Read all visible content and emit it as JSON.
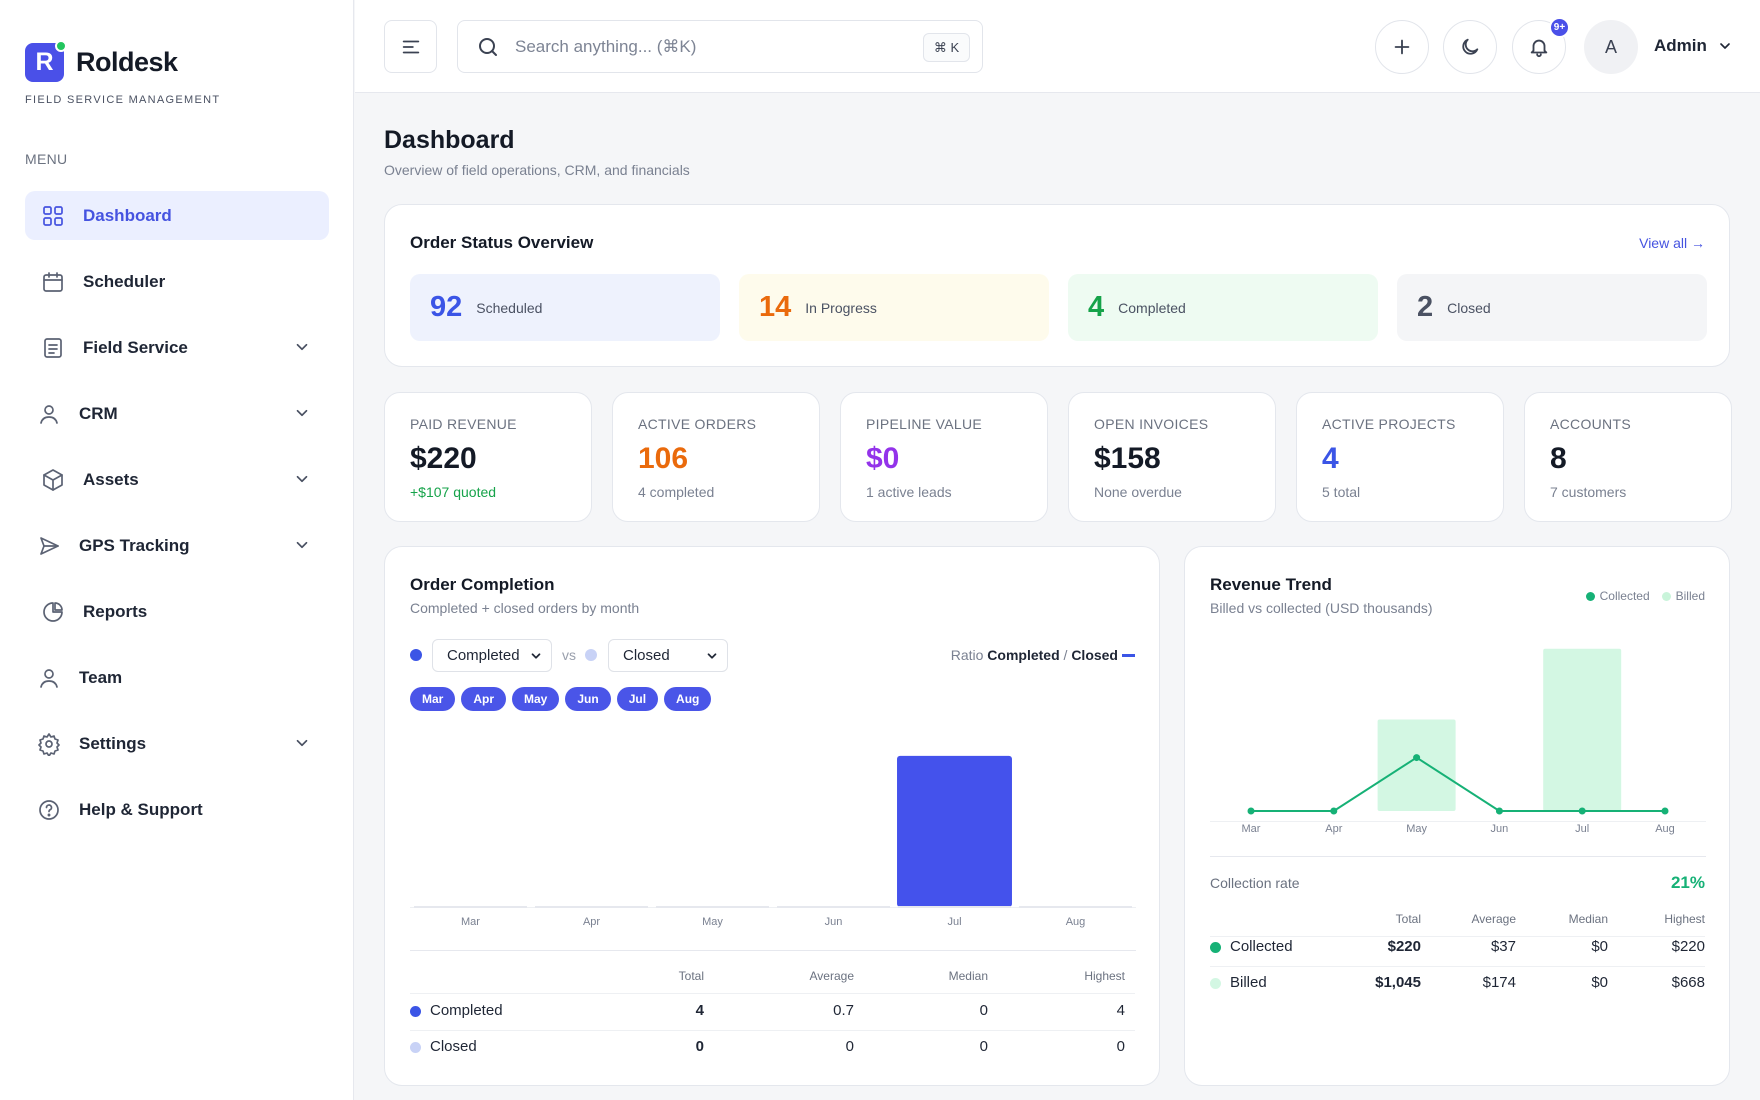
{
  "brand": {
    "name": "Roldesk",
    "mark": "R",
    "subtitle": "FIELD SERVICE MANAGEMENT"
  },
  "menu_label": "MENU",
  "nav": [
    {
      "label": "Dashboard",
      "icon": "grid-icon",
      "active": true,
      "expandable": false
    },
    {
      "label": "Scheduler",
      "icon": "calendar-icon",
      "active": false,
      "expandable": false
    },
    {
      "label": "Field Service",
      "icon": "document-icon",
      "active": false,
      "expandable": true
    },
    {
      "label": "CRM",
      "icon": "user-icon",
      "active": false,
      "expandable": true
    },
    {
      "label": "Assets",
      "icon": "box-icon",
      "active": false,
      "expandable": true
    },
    {
      "label": "GPS Tracking",
      "icon": "send-icon",
      "active": false,
      "expandable": true
    },
    {
      "label": "Reports",
      "icon": "pie-chart-icon",
      "active": false,
      "expandable": false
    },
    {
      "label": "Team",
      "icon": "user-icon",
      "active": false,
      "expandable": false
    },
    {
      "label": "Settings",
      "icon": "gear-icon",
      "active": false,
      "expandable": true
    },
    {
      "label": "Help & Support",
      "icon": "help-circle-icon",
      "active": false,
      "expandable": false
    }
  ],
  "topbar": {
    "search_placeholder": "Search anything... (⌘K)",
    "shortcut": "⌘ K",
    "notif_badge": "9+",
    "avatar_initial": "A",
    "user_name": "Admin"
  },
  "page": {
    "title": "Dashboard",
    "subtitle": "Overview of field operations, CRM, and financials"
  },
  "status": {
    "title": "Order Status Overview",
    "view_all": "View all →",
    "tiles": [
      {
        "value": "92",
        "label": "Scheduled",
        "color": "#3b55e6",
        "bg": "#eef2fd"
      },
      {
        "value": "14",
        "label": "In Progress",
        "color": "#ea6a0c",
        "bg": "#fefbec"
      },
      {
        "value": "4",
        "label": "Completed",
        "color": "#16a34a",
        "bg": "#eefbf2"
      },
      {
        "value": "2",
        "label": "Closed",
        "color": "#4b5263",
        "bg": "#f4f5f7"
      }
    ]
  },
  "kpis": [
    {
      "label": "PAID REVENUE",
      "value": "$220",
      "sub": "+$107 quoted",
      "value_color": "#141a26",
      "sub_color": "#16a34a"
    },
    {
      "label": "ACTIVE ORDERS",
      "value": "106",
      "sub": "4 completed",
      "value_color": "#ea6a0c",
      "sub_color": "#7a8191"
    },
    {
      "label": "PIPELINE VALUE",
      "value": "$0",
      "sub": "1 active leads",
      "value_color": "#9333ea",
      "sub_color": "#7a8191"
    },
    {
      "label": "OPEN INVOICES",
      "value": "$158",
      "sub": "None overdue",
      "value_color": "#141a26",
      "sub_color": "#7a8191"
    },
    {
      "label": "ACTIVE PROJECTS",
      "value": "4",
      "sub": "5 total",
      "value_color": "#3b55e6",
      "sub_color": "#7a8191"
    },
    {
      "label": "ACCOUNTS",
      "value": "8",
      "sub": "7 customers",
      "value_color": "#141a26",
      "sub_color": "#7a8191"
    }
  ],
  "order_completion": {
    "title": "Order Completion",
    "subtitle": "Completed + closed orders by month",
    "select_a": "Completed",
    "vs": "vs",
    "select_b": "Closed",
    "ratio_label": "Ratio",
    "ratio_a": "Completed",
    "ratio_sep": "/",
    "ratio_b": "Closed",
    "months": [
      "Mar",
      "Apr",
      "May",
      "Jun",
      "Jul",
      "Aug"
    ],
    "table": {
      "headers": [
        "Total",
        "Average",
        "Median",
        "Highest"
      ],
      "rows": [
        {
          "name": "Completed",
          "color": "#3b55e6",
          "total": "4",
          "average": "0.7",
          "median": "0",
          "highest": "4"
        },
        {
          "name": "Closed",
          "color": "#c8d2f6",
          "total": "0",
          "average": "0",
          "median": "0",
          "highest": "0"
        }
      ]
    }
  },
  "revenue_trend": {
    "title": "Revenue Trend",
    "subtitle": "Billed vs collected (USD thousands)",
    "legend": [
      "Collected",
      "Billed"
    ],
    "collection_rate_label": "Collection rate",
    "collection_rate": "21%",
    "table": {
      "headers": [
        "Total",
        "Average",
        "Median",
        "Highest"
      ],
      "rows": [
        {
          "name": "Collected",
          "color": "#16b176",
          "total": "$220",
          "average": "$37",
          "median": "$0",
          "highest": "$220"
        },
        {
          "name": "Billed",
          "color": "#d3f7e3",
          "total": "$1,045",
          "average": "$174",
          "median": "$0",
          "highest": "$668"
        }
      ]
    }
  },
  "chart_data": [
    {
      "type": "bar",
      "title": "Order Completion",
      "categories": [
        "Mar",
        "Apr",
        "May",
        "Jun",
        "Jul",
        "Aug"
      ],
      "series": [
        {
          "name": "Completed",
          "values": [
            0,
            0,
            0,
            0,
            4,
            0
          ]
        },
        {
          "name": "Closed",
          "values": [
            0,
            0,
            0,
            0,
            0,
            0
          ]
        }
      ],
      "ylim": [
        0,
        4.5
      ],
      "grid": false
    },
    {
      "type": "bar",
      "title": "Revenue Trend",
      "categories": [
        "Mar",
        "Apr",
        "May",
        "Jun",
        "Jul",
        "Aug"
      ],
      "series": [
        {
          "name": "Billed",
          "type": "bar",
          "values": [
            0,
            0,
            377,
            0,
            668,
            0
          ]
        },
        {
          "name": "Collected",
          "type": "line",
          "values": [
            0,
            0,
            220,
            0,
            0,
            0
          ]
        }
      ],
      "ylim": [
        0,
        700
      ],
      "legend": "top-right",
      "grid": false
    }
  ],
  "colors": {
    "accent": "#4a50e8",
    "bar": "#4452ec",
    "green": "#16b176",
    "billed": "#d3f7e3"
  }
}
